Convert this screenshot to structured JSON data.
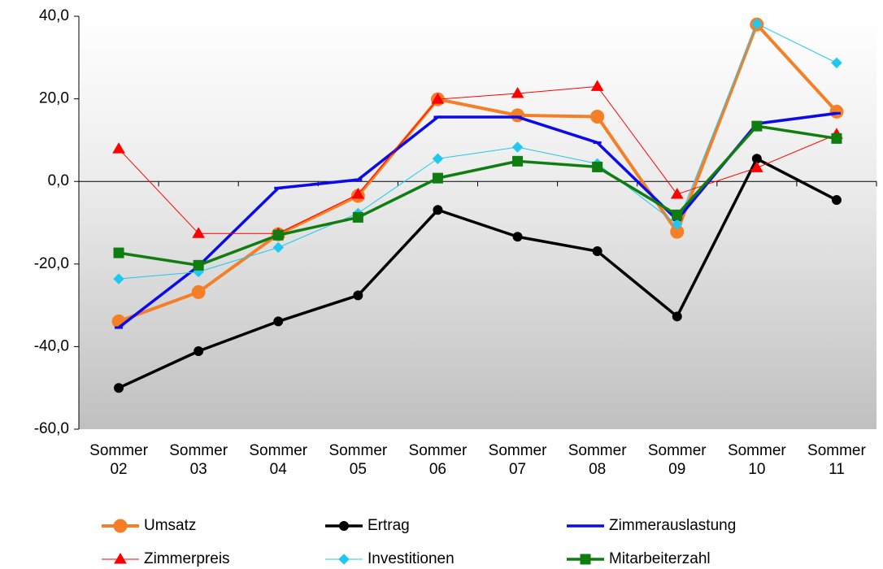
{
  "chart_data": {
    "type": "line",
    "categories": [
      "Sommer 02",
      "Sommer 03",
      "Sommer 04",
      "Sommer 05",
      "Sommer 06",
      "Sommer 07",
      "Sommer 08",
      "Sommer 09",
      "Sommer 10",
      "Sommer 11"
    ],
    "series": [
      {
        "name": "Umsatz",
        "color": "#f57f26",
        "marker": "circle",
        "values": [
          -33.9,
          -26.8,
          -12.8,
          -3.5,
          19.9,
          16.0,
          15.7,
          -12.2,
          38.0,
          16.9
        ]
      },
      {
        "name": "Ertrag",
        "color": "#000000",
        "marker": "dot",
        "values": [
          -50.0,
          -41.1,
          -33.9,
          -27.6,
          -6.9,
          -13.4,
          -16.9,
          -32.7,
          5.5,
          -4.5
        ]
      },
      {
        "name": "Zimmerauslastung",
        "color": "#0a0aeb",
        "marker": "none",
        "values": [
          -35.4,
          -20.5,
          -1.6,
          0.4,
          15.6,
          15.6,
          9.4,
          -9.3,
          14.0,
          16.5
        ]
      },
      {
        "name": "Zimmerpreis",
        "color": "#ff0000",
        "marker": "triangle",
        "values": [
          7.9,
          -12.6,
          -12.6,
          -3.1,
          19.9,
          21.3,
          23.0,
          -3.1,
          3.3,
          11.4
        ]
      },
      {
        "name": "Investitionen",
        "color": "#1ec8f0",
        "marker": "diamond",
        "values": [
          -23.6,
          -21.9,
          -16.0,
          -7.7,
          5.5,
          8.3,
          4.3,
          -10.4,
          38.2,
          28.7
        ]
      },
      {
        "name": "Mitarbeiterzahl",
        "color": "#0f7d0f",
        "marker": "square",
        "values": [
          -17.3,
          -20.3,
          -13.0,
          -8.7,
          0.8,
          4.9,
          3.5,
          -8.1,
          13.4,
          10.4
        ]
      }
    ],
    "ylim": [
      -60,
      40
    ],
    "yticks": [
      {
        "value": -60,
        "label": "-60,0"
      },
      {
        "value": -40,
        "label": "-40,0"
      },
      {
        "value": -20,
        "label": "-20,0"
      },
      {
        "value": 0,
        "label": "0,0"
      },
      {
        "value": 20,
        "label": "20,0"
      },
      {
        "value": 40,
        "label": "40,0"
      }
    ],
    "grid": false,
    "legend": "bottom"
  }
}
